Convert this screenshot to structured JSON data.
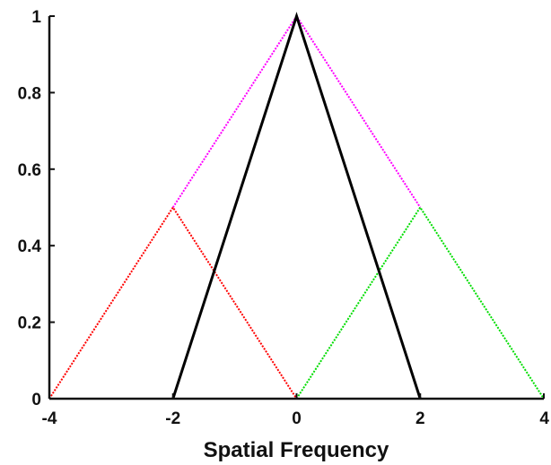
{
  "chart_data": {
    "type": "line",
    "title": "",
    "xlabel": "Spatial Frequency",
    "ylabel": "",
    "xlim": [
      -4,
      4
    ],
    "ylim": [
      0,
      1
    ],
    "xticks": [
      -4,
      -2,
      0,
      2,
      4
    ],
    "xtick_labels": [
      "-4",
      "-2",
      "0",
      "2",
      "4"
    ],
    "yticks": [
      0,
      0.2,
      0.4,
      0.6,
      0.8,
      1
    ],
    "ytick_labels": [
      "0",
      "0.2",
      "0.4",
      "0.6",
      "0.8",
      "1"
    ],
    "grid": false,
    "legend": "none",
    "series": [
      {
        "color": "#ff00ff",
        "style": "dotted",
        "x": [
          -2,
          0,
          2
        ],
        "y": [
          0.5,
          1,
          0.5
        ]
      },
      {
        "color": "#ff0000",
        "style": "dotted",
        "x": [
          -4,
          -2,
          0
        ],
        "y": [
          0,
          0.5,
          0
        ]
      },
      {
        "color": "#00dd00",
        "style": "dotted",
        "x": [
          0,
          2,
          4
        ],
        "y": [
          0,
          0.5,
          0
        ]
      },
      {
        "color": "#000000",
        "style": "solid",
        "x": [
          -2,
          0,
          2
        ],
        "y": [
          0,
          1,
          0
        ]
      }
    ]
  }
}
